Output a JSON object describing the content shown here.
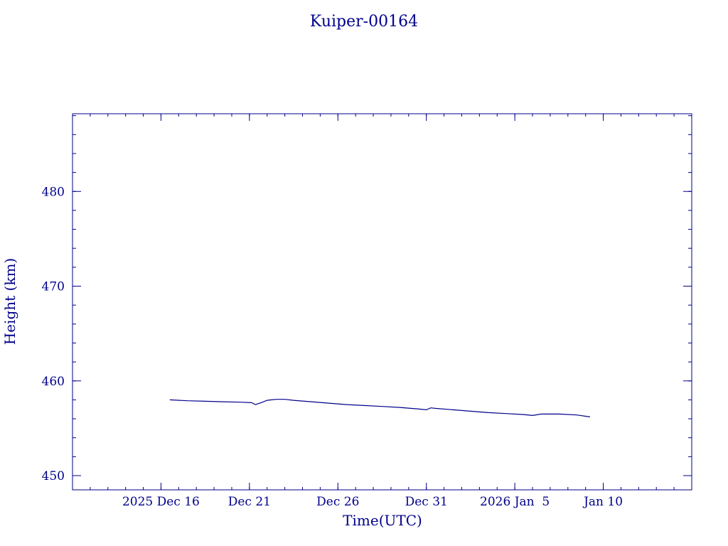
{
  "chart_data": {
    "type": "line",
    "title": "Kuiper-00164",
    "xlabel": "Time(UTC)",
    "ylabel": "Height (km)",
    "color": "#00008b",
    "grid": false,
    "legend": "none",
    "xlim": [
      "2025-12-11",
      "2026-01-15"
    ],
    "ylim": [
      448.5,
      488.2
    ],
    "x_ticks": [
      {
        "value": "2025-12-16",
        "label": "2025 Dec 16"
      },
      {
        "value": "2025-12-21",
        "label": "Dec 21"
      },
      {
        "value": "2025-12-26",
        "label": "Dec 26"
      },
      {
        "value": "2025-12-31",
        "label": "Dec 31"
      },
      {
        "value": "2026-01-05",
        "label": "2026 Jan  5"
      },
      {
        "value": "2026-01-10",
        "label": "Jan 10"
      }
    ],
    "x_minor_step_days": 1,
    "y_ticks": [
      450,
      460,
      470,
      480
    ],
    "y_minor_step": 2,
    "series": [
      {
        "name": "",
        "x": [
          "2025-12-16T12:00",
          "2025-12-17T12:00",
          "2025-12-18T12:00",
          "2025-12-19T12:00",
          "2025-12-20T12:00",
          "2025-12-21T03:00",
          "2025-12-21T08:00",
          "2025-12-21T16:00",
          "2025-12-22T00:00",
          "2025-12-22T12:00",
          "2025-12-23T00:00",
          "2025-12-23T12:00",
          "2025-12-24T12:00",
          "2025-12-25T12:00",
          "2025-12-26T12:00",
          "2025-12-27T12:00",
          "2025-12-28T12:00",
          "2025-12-29T12:00",
          "2025-12-30T12:00",
          "2025-12-31T00:00",
          "2025-12-31T06:00",
          "2025-12-31T12:00",
          "2026-01-01T12:00",
          "2026-01-02T12:00",
          "2026-01-03T12:00",
          "2026-01-04T12:00",
          "2026-01-05T12:00",
          "2026-01-06T00:00",
          "2026-01-06T12:00",
          "2026-01-07T12:00",
          "2026-01-08T12:00",
          "2026-01-09T06:00"
        ],
        "values": [
          458.0,
          457.9,
          457.85,
          457.8,
          457.75,
          457.7,
          457.5,
          457.7,
          457.95,
          458.05,
          458.05,
          457.95,
          457.8,
          457.65,
          457.5,
          457.4,
          457.3,
          457.2,
          457.05,
          456.95,
          457.15,
          457.1,
          456.95,
          456.8,
          456.65,
          456.55,
          456.45,
          456.35,
          456.5,
          456.5,
          456.4,
          456.2
        ]
      }
    ]
  }
}
